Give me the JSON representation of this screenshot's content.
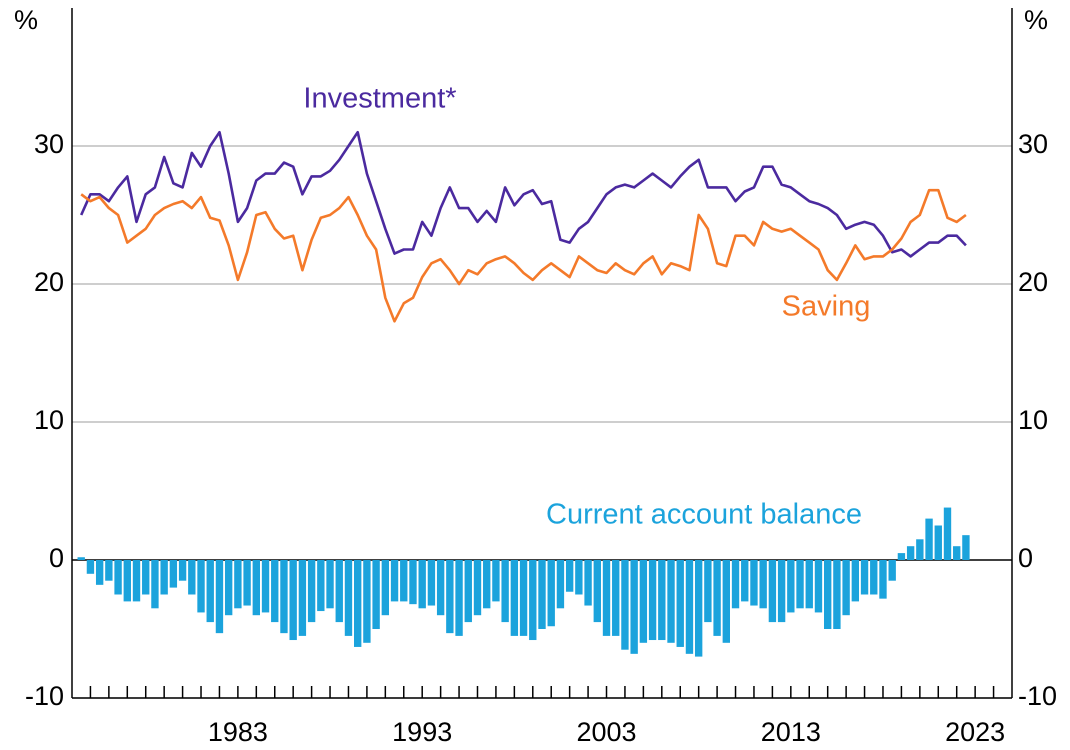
{
  "chart_data": {
    "type": "combo",
    "y_unit": "%",
    "xlim": [
      1974,
      2025
    ],
    "xticks": [
      1983,
      1993,
      2003,
      2013,
      2023
    ],
    "xminor_ticks": [
      1975,
      1976,
      1977,
      1978,
      1979,
      1980,
      1981,
      1982,
      1983,
      1984,
      1985,
      1986,
      1987,
      1988,
      1989,
      1990,
      1991,
      1992,
      1993,
      1994,
      1995,
      1996,
      1997,
      1998,
      1999,
      2000,
      2001,
      2002,
      2003,
      2004,
      2005,
      2006,
      2007,
      2008,
      2009,
      2010,
      2011,
      2012,
      2013,
      2014,
      2015,
      2016,
      2017,
      2018,
      2019,
      2020,
      2021,
      2022,
      2023,
      2024
    ],
    "ylim": [
      -10,
      40
    ],
    "yticks": [
      -10,
      0,
      10,
      20,
      30
    ],
    "grid": true,
    "x": [
      1974.5,
      1975,
      1975.5,
      1976,
      1976.5,
      1977,
      1977.5,
      1978,
      1978.5,
      1979,
      1979.5,
      1980,
      1980.5,
      1981,
      1981.5,
      1982,
      1982.5,
      1983,
      1983.5,
      1984,
      1984.5,
      1985,
      1985.5,
      1986,
      1986.5,
      1987,
      1987.5,
      1988,
      1988.5,
      1989,
      1989.5,
      1990,
      1990.5,
      1991,
      1991.5,
      1992,
      1992.5,
      1993,
      1993.5,
      1994,
      1994.5,
      1995,
      1995.5,
      1996,
      1996.5,
      1997,
      1997.5,
      1998,
      1998.5,
      1999,
      1999.5,
      2000,
      2000.5,
      2001,
      2001.5,
      2002,
      2002.5,
      2003,
      2003.5,
      2004,
      2004.5,
      2005,
      2005.5,
      2006,
      2006.5,
      2007,
      2007.5,
      2008,
      2008.5,
      2009,
      2009.5,
      2010,
      2010.5,
      2011,
      2011.5,
      2012,
      2012.5,
      2013,
      2013.5,
      2014,
      2014.5,
      2015,
      2015.5,
      2016,
      2016.5,
      2017,
      2017.5,
      2018,
      2018.5,
      2019,
      2019.5,
      2020,
      2020.5,
      2021,
      2021.5,
      2022,
      2022.5
    ],
    "series": [
      {
        "name": "Investment*",
        "type": "line",
        "color": "#4b2a9f",
        "values": [
          25,
          26.5,
          26.5,
          26,
          27,
          27.8,
          24.5,
          26.5,
          27,
          29.2,
          27.3,
          27,
          29.5,
          28.5,
          30,
          31,
          28,
          24.5,
          25.5,
          27.5,
          28,
          28,
          28.8,
          28.5,
          26.5,
          27.8,
          27.8,
          28.2,
          29,
          30,
          31,
          28,
          26,
          24,
          22.2,
          22.5,
          22.5,
          24.5,
          23.5,
          25.5,
          27,
          25.5,
          25.5,
          24.5,
          25.3,
          24.5,
          27,
          25.7,
          26.5,
          26.8,
          25.8,
          26,
          23.2,
          23,
          24,
          24.5,
          25.5,
          26.5,
          27,
          27.2,
          27,
          27.5,
          28,
          27.5,
          27,
          27.8,
          28.5,
          29,
          27,
          27,
          27,
          26,
          26.7,
          27,
          28.5,
          28.5,
          27.2,
          27,
          26.5,
          26,
          25.8,
          25.5,
          25,
          24,
          24.3,
          24.5,
          24.3,
          23.5,
          22.3,
          22.5,
          22,
          22.5,
          23,
          23,
          23.5,
          23.5,
          22.8
        ]
      },
      {
        "name": "Saving",
        "type": "line",
        "color": "#f47a2a",
        "values": [
          26.5,
          26,
          26.3,
          25.5,
          25,
          23,
          23.5,
          24,
          25,
          25.5,
          25.8,
          26,
          25.5,
          26.3,
          24.8,
          24.6,
          22.8,
          20.3,
          22.3,
          25,
          25.2,
          24,
          23.3,
          23.5,
          21,
          23.2,
          24.8,
          25,
          25.5,
          26.3,
          25,
          23.5,
          22.5,
          19,
          17.3,
          18.6,
          19,
          20.5,
          21.5,
          21.8,
          21,
          20,
          21,
          20.7,
          21.5,
          21.8,
          22,
          21.5,
          20.8,
          20.3,
          21,
          21.5,
          21,
          20.5,
          22,
          21.5,
          21,
          20.8,
          21.5,
          21,
          20.7,
          21.5,
          22,
          20.7,
          21.5,
          21.3,
          21,
          25,
          24,
          21.5,
          21.3,
          23.5,
          23.5,
          22.8,
          24.5,
          24,
          23.8,
          24,
          23.5,
          23,
          22.5,
          21,
          20.3,
          21.5,
          22.8,
          21.8,
          22,
          22,
          22.5,
          23.3,
          24.5,
          25,
          26.8,
          26.8,
          24.8,
          24.5,
          25
        ]
      },
      {
        "name": "Current account balance",
        "type": "bar",
        "color": "#1ba3dc",
        "values": [
          0.2,
          -1,
          -1.8,
          -1.5,
          -2.5,
          -3,
          -3,
          -2.5,
          -3.5,
          -2.5,
          -2,
          -1.5,
          -2.5,
          -3.8,
          -4.5,
          -5.3,
          -4,
          -3.5,
          -3.3,
          -4,
          -3.8,
          -4.5,
          -5.3,
          -5.8,
          -5.5,
          -4.5,
          -3.7,
          -3.5,
          -4.5,
          -5.5,
          -6.3,
          -6,
          -5,
          -4,
          -3,
          -3,
          -3.2,
          -3.5,
          -3.3,
          -4,
          -5.3,
          -5.5,
          -4.5,
          -4,
          -3.5,
          -3,
          -4.5,
          -5.5,
          -5.5,
          -5.8,
          -5,
          -4.8,
          -3.5,
          -2.3,
          -2.5,
          -3.3,
          -4.5,
          -5.5,
          -5.5,
          -6.5,
          -6.8,
          -6,
          -5.8,
          -5.8,
          -6,
          -6.3,
          -6.8,
          -7,
          -4.5,
          -5.5,
          -6,
          -3.5,
          -3,
          -3.3,
          -3.5,
          -4.5,
          -4.5,
          -3.8,
          -3.5,
          -3.5,
          -3.8,
          -5,
          -5,
          -4,
          -3,
          -2.5,
          -2.5,
          -2.8,
          -1.5,
          0.5,
          1,
          1.5,
          3,
          2.5,
          3.8,
          1,
          1.8
        ]
      }
    ]
  }
}
